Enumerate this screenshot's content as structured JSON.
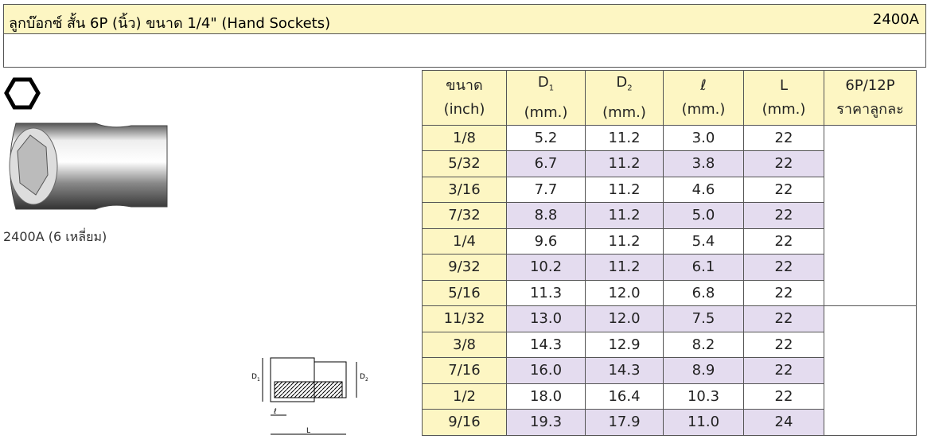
{
  "header": {
    "title": "ลูกบ๊อกซ์ สั้น 6P (นิ้ว) ขนาด 1/4\" (Hand Sockets)",
    "code": "2400A"
  },
  "product": {
    "caption": "2400A (6 เหลี่ยม)"
  },
  "diagram": {
    "labels": [
      "D",
      "1",
      "D",
      "2",
      "ℓ",
      "L"
    ]
  },
  "table": {
    "columns": [
      {
        "main": "ขนาด",
        "unit": "(inch)"
      },
      {
        "main": "D",
        "sub": "1",
        "unit": "(mm.)"
      },
      {
        "main": "D",
        "sub": "2",
        "unit": "(mm.)"
      },
      {
        "main": "ℓ",
        "unit": "(mm.)"
      },
      {
        "main": "L",
        "unit": "(mm.)"
      },
      {
        "main": "6P/12P",
        "unit": "ราคาลูกละ"
      }
    ],
    "rows": [
      [
        "1/8",
        "5.2",
        "11.2",
        "3.0",
        "22"
      ],
      [
        "5/32",
        "6.7",
        "11.2",
        "3.8",
        "22"
      ],
      [
        "3/16",
        "7.7",
        "11.2",
        "4.6",
        "22"
      ],
      [
        "7/32",
        "8.8",
        "11.2",
        "5.0",
        "22"
      ],
      [
        "1/4",
        "9.6",
        "11.2",
        "5.4",
        "22"
      ],
      [
        "9/32",
        "10.2",
        "11.2",
        "6.1",
        "22"
      ],
      [
        "5/16",
        "11.3",
        "12.0",
        "6.8",
        "22"
      ],
      [
        "11/32",
        "13.0",
        "12.0",
        "7.5",
        "22"
      ],
      [
        "3/8",
        "14.3",
        "12.9",
        "8.2",
        "22"
      ],
      [
        "7/16",
        "16.0",
        "14.3",
        "8.9",
        "22"
      ],
      [
        "1/2",
        "18.0",
        "16.4",
        "10.3",
        "22"
      ],
      [
        "9/16",
        "19.3",
        "17.9",
        "11.0",
        "24"
      ]
    ]
  }
}
